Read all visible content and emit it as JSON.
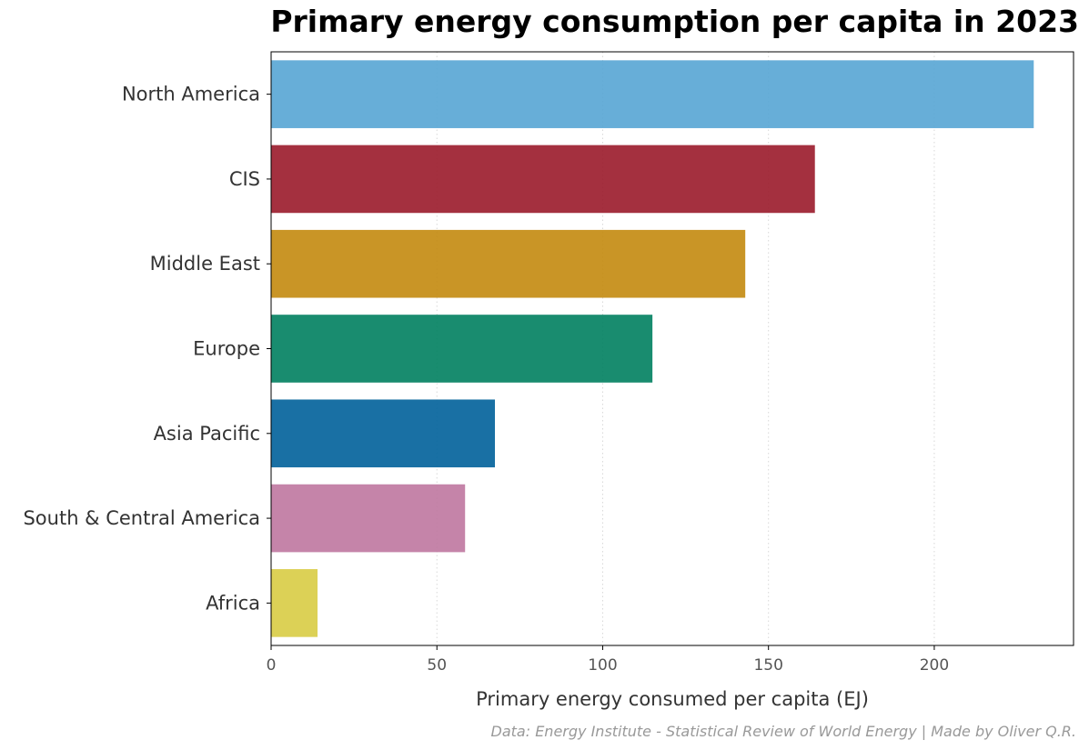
{
  "chart_data": {
    "type": "bar",
    "orientation": "horizontal",
    "title": "Primary energy consumption per capita in 2023",
    "xlabel": "Primary energy consumed per capita (EJ)",
    "ylabel": "",
    "categories": [
      "North America",
      "CIS",
      "Middle East",
      "Europe",
      "Asia Pacific",
      "South & Central America",
      "Africa"
    ],
    "values": [
      230,
      164,
      143,
      115,
      67.5,
      58.5,
      14
    ],
    "colors": [
      "#56a5d4",
      "#9a1a2a",
      "#c38a0e",
      "#007f5f",
      "#00609a",
      "#bf77a0",
      "#d8cc44"
    ],
    "xlim": [
      0,
      242
    ],
    "xticks": [
      "0",
      "50",
      "100",
      "150",
      "200"
    ],
    "grid": "x-dotted",
    "source": "Data: Energy Institute - Statistical Review of World Energy | Made by Oliver Q.R."
  }
}
